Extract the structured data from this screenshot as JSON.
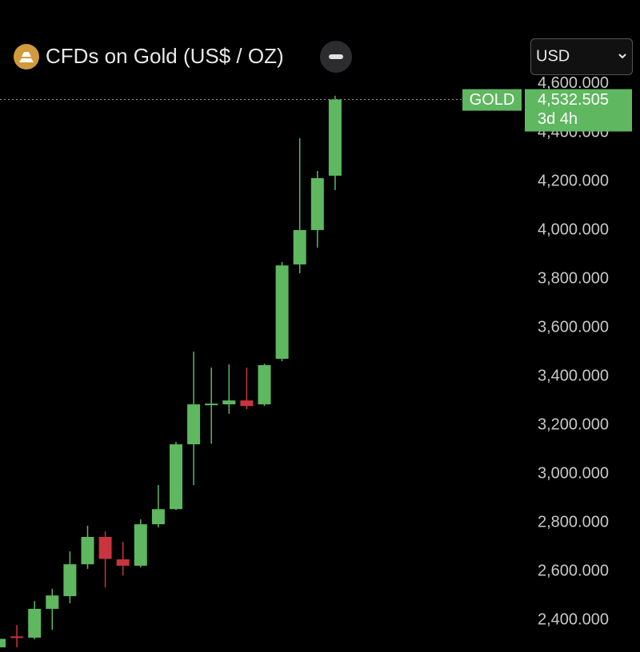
{
  "chart_data": {
    "type": "candlestick",
    "title": "CFDs on Gold (US$ / OZ)",
    "currency": "USD",
    "symbol": "GOLD",
    "last_price": {
      "value": 4532.505,
      "label": "4,532.505"
    },
    "countdown": "3d 4h",
    "up_color": "#5fb760",
    "down_color": "#c9343f",
    "ylim": [
      2266,
      4613
    ],
    "yticks": [
      {
        "value": 2400,
        "label": "2,400.000"
      },
      {
        "value": 2600,
        "label": "2,600.000"
      },
      {
        "value": 2800,
        "label": "2,800.000"
      },
      {
        "value": 3000,
        "label": "3,000.000"
      },
      {
        "value": 3200,
        "label": "3,200.000"
      },
      {
        "value": 3400,
        "label": "3,400.000"
      },
      {
        "value": 3600,
        "label": "3,600.000"
      },
      {
        "value": 3800,
        "label": "3,800.000"
      },
      {
        "value": 4000,
        "label": "4,000.000"
      },
      {
        "value": 4200,
        "label": "4,200.000"
      },
      {
        "value": 4400,
        "label": "4,400.000"
      },
      {
        "value": 4600,
        "label": "4,600.000"
      }
    ],
    "open": [
      2285,
      2330,
      2325,
      2443,
      2495,
      2626,
      2738,
      2646,
      2620,
      2790,
      2852,
      3118,
      3280,
      3282,
      3298,
      3282,
      3469,
      3856,
      3997,
      4220
    ],
    "high": [
      2330,
      2377,
      2475,
      2525,
      2679,
      2784,
      2761,
      2718,
      2810,
      2951,
      3128,
      3498,
      3433,
      3446,
      3433,
      3449,
      3866,
      4374,
      4239,
      4548
    ],
    "low": [
      2270,
      2285,
      2318,
      2357,
      2466,
      2607,
      2531,
      2580,
      2613,
      2777,
      2849,
      2951,
      3121,
      3243,
      3262,
      3275,
      3459,
      3820,
      3925,
      4161
    ],
    "close": [
      2320,
      2325,
      2443,
      2498,
      2626,
      2738,
      2648,
      2620,
      2790,
      2852,
      3118,
      3282,
      3285,
      3298,
      3275,
      3443,
      3852,
      3997,
      4210,
      4532.505
    ]
  }
}
